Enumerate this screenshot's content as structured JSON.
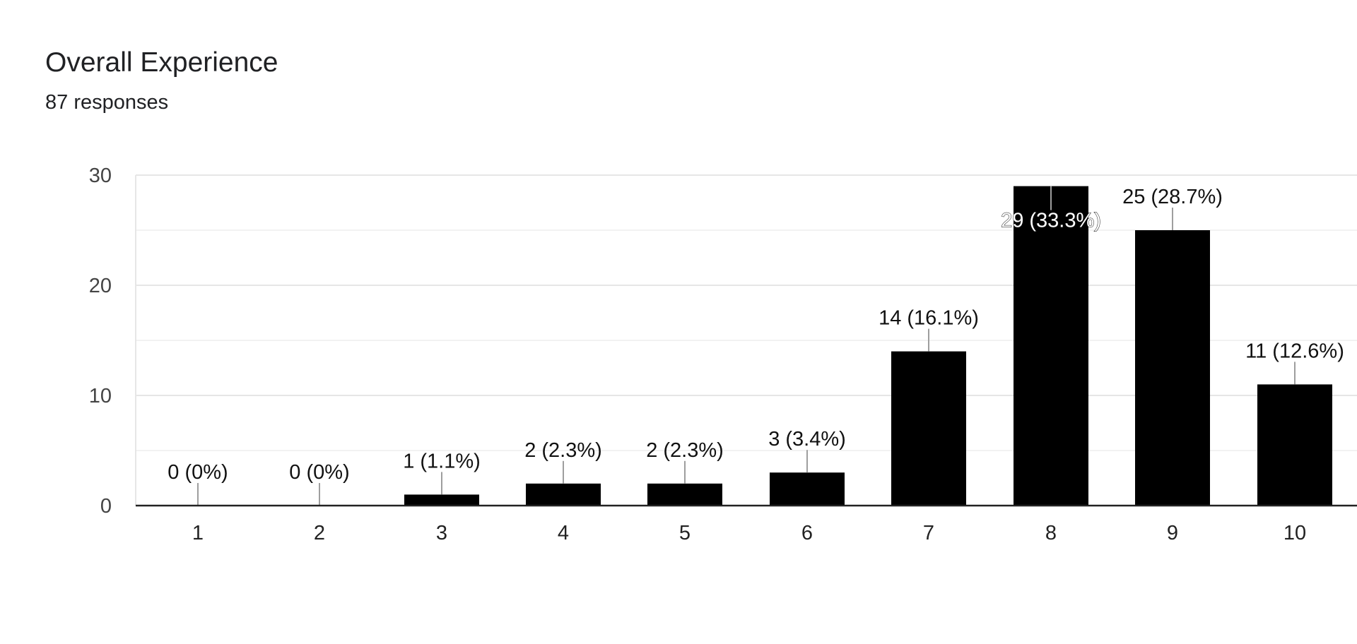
{
  "header": {
    "title": "Overall Experience",
    "subtitle": "87 responses"
  },
  "colors": {
    "bar": "#000000",
    "grid_major": "#e6e6e6",
    "grid_minor": "#f2f2f2",
    "axis": "#222222",
    "leader": "#9e9e9e"
  },
  "chart_data": {
    "type": "bar",
    "title": "Overall Experience",
    "subtitle": "87 responses",
    "categories": [
      "1",
      "2",
      "3",
      "4",
      "5",
      "6",
      "7",
      "8",
      "9",
      "10"
    ],
    "values": [
      0,
      0,
      1,
      2,
      2,
      3,
      14,
      29,
      25,
      11
    ],
    "data_labels": [
      "0 (0%)",
      "0 (0%)",
      "1 (1.1%)",
      "2 (2.3%)",
      "2 (2.3%)",
      "3 (3.4%)",
      "14 (16.1%)",
      "29 (33.3%)",
      "25 (28.7%)",
      "11 (12.6%)"
    ],
    "ylim": [
      0,
      30
    ],
    "yticks": [
      "0",
      "10",
      "20",
      "30"
    ],
    "grid": true,
    "legend": "none"
  }
}
